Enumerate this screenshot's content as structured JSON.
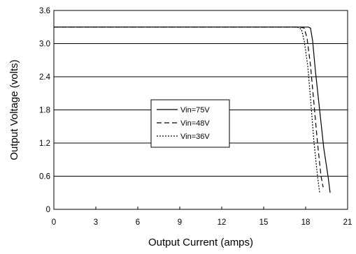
{
  "chart_data": {
    "type": "line",
    "xlabel": "Output Current (amps)",
    "ylabel": "Output Voltage (volts)",
    "xlim": [
      0,
      21
    ],
    "ylim": [
      0,
      3.6
    ],
    "xticks": [
      0,
      3,
      6,
      9,
      12,
      15,
      18,
      21
    ],
    "xtick_labels": [
      "0",
      "3",
      "6",
      "9",
      "12",
      "15",
      "18",
      "21"
    ],
    "yticks": [
      0,
      0.6,
      1.2,
      1.8,
      2.4,
      3.0,
      3.6
    ],
    "ytick_labels": [
      "0",
      "0.6",
      "1.2",
      "1.8",
      "2.4",
      "3.0",
      "3.6"
    ],
    "grid": "horizontal",
    "legend_position": "center-left",
    "series": [
      {
        "name": "Vin=75V",
        "style": "solid",
        "color": "#000000",
        "points": [
          [
            0,
            3.3
          ],
          [
            15,
            3.3
          ],
          [
            17.5,
            3.3
          ],
          [
            18.2,
            3.3
          ],
          [
            18.35,
            3.28
          ],
          [
            18.5,
            3.05
          ],
          [
            18.7,
            2.5
          ],
          [
            19.0,
            1.8
          ],
          [
            19.3,
            1.1
          ],
          [
            19.6,
            0.6
          ],
          [
            19.75,
            0.3
          ]
        ]
      },
      {
        "name": "Vin=48V",
        "style": "dashed",
        "color": "#000000",
        "points": [
          [
            0,
            3.3
          ],
          [
            15,
            3.3
          ],
          [
            17.6,
            3.3
          ],
          [
            17.9,
            3.28
          ],
          [
            18.1,
            3.1
          ],
          [
            18.35,
            2.6
          ],
          [
            18.6,
            1.9
          ],
          [
            18.85,
            1.2
          ],
          [
            19.1,
            0.6
          ],
          [
            19.25,
            0.4
          ]
        ]
      },
      {
        "name": "Vin=36V",
        "style": "dotted",
        "color": "#000000",
        "points": [
          [
            0,
            3.3
          ],
          [
            15,
            3.3
          ],
          [
            17.4,
            3.3
          ],
          [
            17.7,
            3.26
          ],
          [
            17.9,
            3.05
          ],
          [
            18.15,
            2.6
          ],
          [
            18.35,
            2.0
          ],
          [
            18.6,
            1.2
          ],
          [
            18.85,
            0.6
          ],
          [
            19.0,
            0.3
          ]
        ]
      }
    ]
  }
}
